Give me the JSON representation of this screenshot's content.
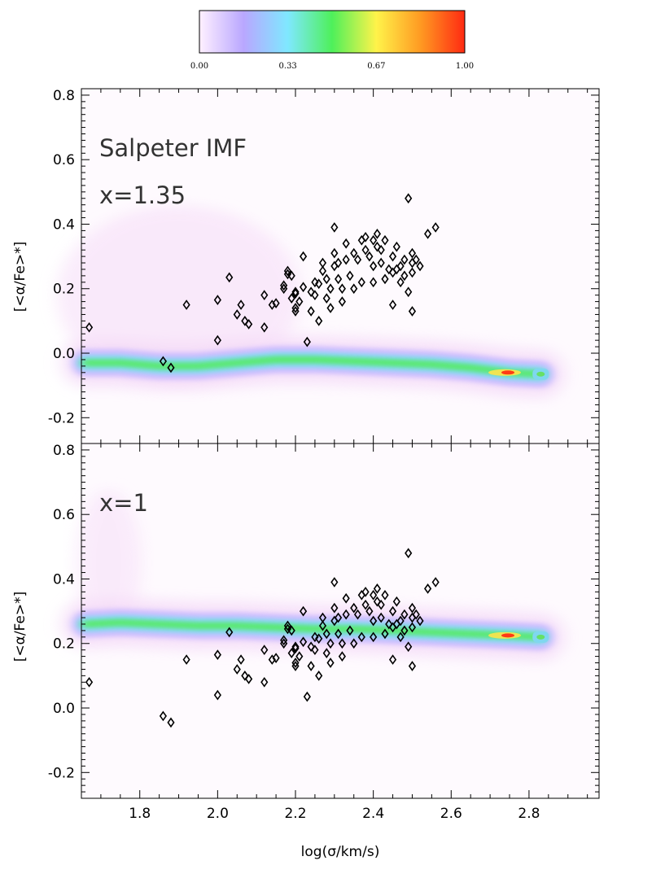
{
  "colorbar": {
    "ticks": [
      "0.00",
      "0.33",
      "0.67",
      "1.00"
    ],
    "colors": [
      "#fff0ff",
      "#b9a7ff",
      "#7fe8ff",
      "#4ef05a",
      "#fff34a",
      "#ff9a22",
      "#ff2a12"
    ]
  },
  "chart_data": [
    {
      "type": "scatter",
      "title": "",
      "annotations": [
        "Salpeter IMF",
        "x=1.35"
      ],
      "xlabel": "",
      "ylabel": "[<α/Fe>*]",
      "xlim": [
        1.65,
        2.98
      ],
      "ylim": [
        -0.28,
        0.82
      ],
      "xticks": [],
      "yticks": [
        "0.8",
        "0.6",
        "0.4",
        "0.2",
        "0.0",
        "-0.2"
      ],
      "density_ridge": {
        "x": [
          1.66,
          1.75,
          1.85,
          1.95,
          2.05,
          2.15,
          2.25,
          2.35,
          2.45,
          2.55,
          2.65,
          2.75,
          2.83
        ],
        "y": [
          -0.03,
          -0.03,
          -0.04,
          -0.04,
          -0.03,
          -0.02,
          -0.02,
          -0.025,
          -0.03,
          -0.035,
          -0.045,
          -0.06,
          -0.065
        ],
        "peak_color_scale": 1.0
      },
      "points": [
        [
          1.67,
          0.08
        ],
        [
          1.86,
          -0.025
        ],
        [
          1.88,
          -0.045
        ],
        [
          1.92,
          0.15
        ],
        [
          2.0,
          0.165
        ],
        [
          2.0,
          0.04
        ],
        [
          2.03,
          0.235
        ],
        [
          2.05,
          0.12
        ],
        [
          2.06,
          0.15
        ],
        [
          2.07,
          0.1
        ],
        [
          2.08,
          0.09
        ],
        [
          2.12,
          0.18
        ],
        [
          2.12,
          0.08
        ],
        [
          2.14,
          0.15
        ],
        [
          2.15,
          0.155
        ],
        [
          2.17,
          0.2
        ],
        [
          2.17,
          0.21
        ],
        [
          2.18,
          0.255
        ],
        [
          2.18,
          0.245
        ],
        [
          2.19,
          0.24
        ],
        [
          2.19,
          0.17
        ],
        [
          2.2,
          0.19
        ],
        [
          2.2,
          0.185
        ],
        [
          2.2,
          0.14
        ],
        [
          2.2,
          0.13
        ],
        [
          2.21,
          0.16
        ],
        [
          2.22,
          0.205
        ],
        [
          2.22,
          0.3
        ],
        [
          2.23,
          0.035
        ],
        [
          2.24,
          0.19
        ],
        [
          2.24,
          0.13
        ],
        [
          2.25,
          0.18
        ],
        [
          2.25,
          0.22
        ],
        [
          2.26,
          0.1
        ],
        [
          2.26,
          0.215
        ],
        [
          2.27,
          0.28
        ],
        [
          2.27,
          0.255
        ],
        [
          2.28,
          0.17
        ],
        [
          2.28,
          0.23
        ],
        [
          2.29,
          0.2
        ],
        [
          2.29,
          0.14
        ],
        [
          2.3,
          0.39
        ],
        [
          2.3,
          0.31
        ],
        [
          2.3,
          0.27
        ],
        [
          2.31,
          0.23
        ],
        [
          2.31,
          0.28
        ],
        [
          2.32,
          0.2
        ],
        [
          2.32,
          0.16
        ],
        [
          2.33,
          0.34
        ],
        [
          2.33,
          0.29
        ],
        [
          2.34,
          0.24
        ],
        [
          2.35,
          0.2
        ],
        [
          2.35,
          0.31
        ],
        [
          2.36,
          0.29
        ],
        [
          2.37,
          0.22
        ],
        [
          2.37,
          0.35
        ],
        [
          2.38,
          0.32
        ],
        [
          2.38,
          0.36
        ],
        [
          2.39,
          0.3
        ],
        [
          2.4,
          0.35
        ],
        [
          2.4,
          0.27
        ],
        [
          2.4,
          0.22
        ],
        [
          2.41,
          0.33
        ],
        [
          2.41,
          0.37
        ],
        [
          2.42,
          0.32
        ],
        [
          2.42,
          0.28
        ],
        [
          2.43,
          0.35
        ],
        [
          2.43,
          0.23
        ],
        [
          2.44,
          0.26
        ],
        [
          2.45,
          0.25
        ],
        [
          2.45,
          0.3
        ],
        [
          2.45,
          0.15
        ],
        [
          2.46,
          0.33
        ],
        [
          2.46,
          0.26
        ],
        [
          2.47,
          0.27
        ],
        [
          2.47,
          0.22
        ],
        [
          2.48,
          0.29
        ],
        [
          2.48,
          0.24
        ],
        [
          2.49,
          0.19
        ],
        [
          2.49,
          0.48
        ],
        [
          2.5,
          0.31
        ],
        [
          2.5,
          0.28
        ],
        [
          2.5,
          0.25
        ],
        [
          2.5,
          0.13
        ],
        [
          2.51,
          0.29
        ],
        [
          2.52,
          0.27
        ],
        [
          2.54,
          0.37
        ],
        [
          2.56,
          0.39
        ]
      ]
    },
    {
      "type": "scatter",
      "title": "",
      "annotations": [
        "x=1"
      ],
      "xlabel": "log(σ/km/s)",
      "ylabel": "[<α/Fe>*]",
      "xlim": [
        1.65,
        2.98
      ],
      "ylim": [
        -0.28,
        0.82
      ],
      "xticks": [
        "1.8",
        "2.0",
        "2.2",
        "2.4",
        "2.6",
        "2.8"
      ],
      "yticks": [
        "0.8",
        "0.6",
        "0.4",
        "0.2",
        "0.0",
        "-0.2"
      ],
      "density_ridge": {
        "x": [
          1.66,
          1.75,
          1.85,
          1.95,
          2.05,
          2.15,
          2.25,
          2.35,
          2.45,
          2.55,
          2.65,
          2.75,
          2.83
        ],
        "y": [
          0.26,
          0.265,
          0.26,
          0.255,
          0.255,
          0.25,
          0.245,
          0.245,
          0.24,
          0.235,
          0.23,
          0.225,
          0.22
        ],
        "peak_color_scale": 1.0
      },
      "points": [
        [
          1.67,
          0.08
        ],
        [
          1.86,
          -0.025
        ],
        [
          1.88,
          -0.045
        ],
        [
          1.92,
          0.15
        ],
        [
          2.0,
          0.165
        ],
        [
          2.0,
          0.04
        ],
        [
          2.03,
          0.235
        ],
        [
          2.05,
          0.12
        ],
        [
          2.06,
          0.15
        ],
        [
          2.07,
          0.1
        ],
        [
          2.08,
          0.09
        ],
        [
          2.12,
          0.18
        ],
        [
          2.12,
          0.08
        ],
        [
          2.14,
          0.15
        ],
        [
          2.15,
          0.155
        ],
        [
          2.17,
          0.2
        ],
        [
          2.17,
          0.21
        ],
        [
          2.18,
          0.255
        ],
        [
          2.18,
          0.245
        ],
        [
          2.19,
          0.24
        ],
        [
          2.19,
          0.17
        ],
        [
          2.2,
          0.19
        ],
        [
          2.2,
          0.185
        ],
        [
          2.2,
          0.14
        ],
        [
          2.2,
          0.13
        ],
        [
          2.21,
          0.16
        ],
        [
          2.22,
          0.205
        ],
        [
          2.22,
          0.3
        ],
        [
          2.23,
          0.035
        ],
        [
          2.24,
          0.19
        ],
        [
          2.24,
          0.13
        ],
        [
          2.25,
          0.18
        ],
        [
          2.25,
          0.22
        ],
        [
          2.26,
          0.1
        ],
        [
          2.26,
          0.215
        ],
        [
          2.27,
          0.28
        ],
        [
          2.27,
          0.255
        ],
        [
          2.28,
          0.17
        ],
        [
          2.28,
          0.23
        ],
        [
          2.29,
          0.2
        ],
        [
          2.29,
          0.14
        ],
        [
          2.3,
          0.39
        ],
        [
          2.3,
          0.31
        ],
        [
          2.3,
          0.27
        ],
        [
          2.31,
          0.23
        ],
        [
          2.31,
          0.28
        ],
        [
          2.32,
          0.2
        ],
        [
          2.32,
          0.16
        ],
        [
          2.33,
          0.34
        ],
        [
          2.33,
          0.29
        ],
        [
          2.34,
          0.24
        ],
        [
          2.35,
          0.2
        ],
        [
          2.35,
          0.31
        ],
        [
          2.36,
          0.29
        ],
        [
          2.37,
          0.22
        ],
        [
          2.37,
          0.35
        ],
        [
          2.38,
          0.32
        ],
        [
          2.38,
          0.36
        ],
        [
          2.39,
          0.3
        ],
        [
          2.4,
          0.35
        ],
        [
          2.4,
          0.27
        ],
        [
          2.4,
          0.22
        ],
        [
          2.41,
          0.33
        ],
        [
          2.41,
          0.37
        ],
        [
          2.42,
          0.32
        ],
        [
          2.42,
          0.28
        ],
        [
          2.43,
          0.35
        ],
        [
          2.43,
          0.23
        ],
        [
          2.44,
          0.26
        ],
        [
          2.45,
          0.25
        ],
        [
          2.45,
          0.3
        ],
        [
          2.45,
          0.15
        ],
        [
          2.46,
          0.33
        ],
        [
          2.46,
          0.26
        ],
        [
          2.47,
          0.27
        ],
        [
          2.47,
          0.22
        ],
        [
          2.48,
          0.29
        ],
        [
          2.48,
          0.24
        ],
        [
          2.49,
          0.19
        ],
        [
          2.49,
          0.48
        ],
        [
          2.5,
          0.31
        ],
        [
          2.5,
          0.28
        ],
        [
          2.5,
          0.25
        ],
        [
          2.5,
          0.13
        ],
        [
          2.51,
          0.29
        ],
        [
          2.52,
          0.27
        ],
        [
          2.54,
          0.37
        ],
        [
          2.56,
          0.39
        ]
      ]
    }
  ]
}
